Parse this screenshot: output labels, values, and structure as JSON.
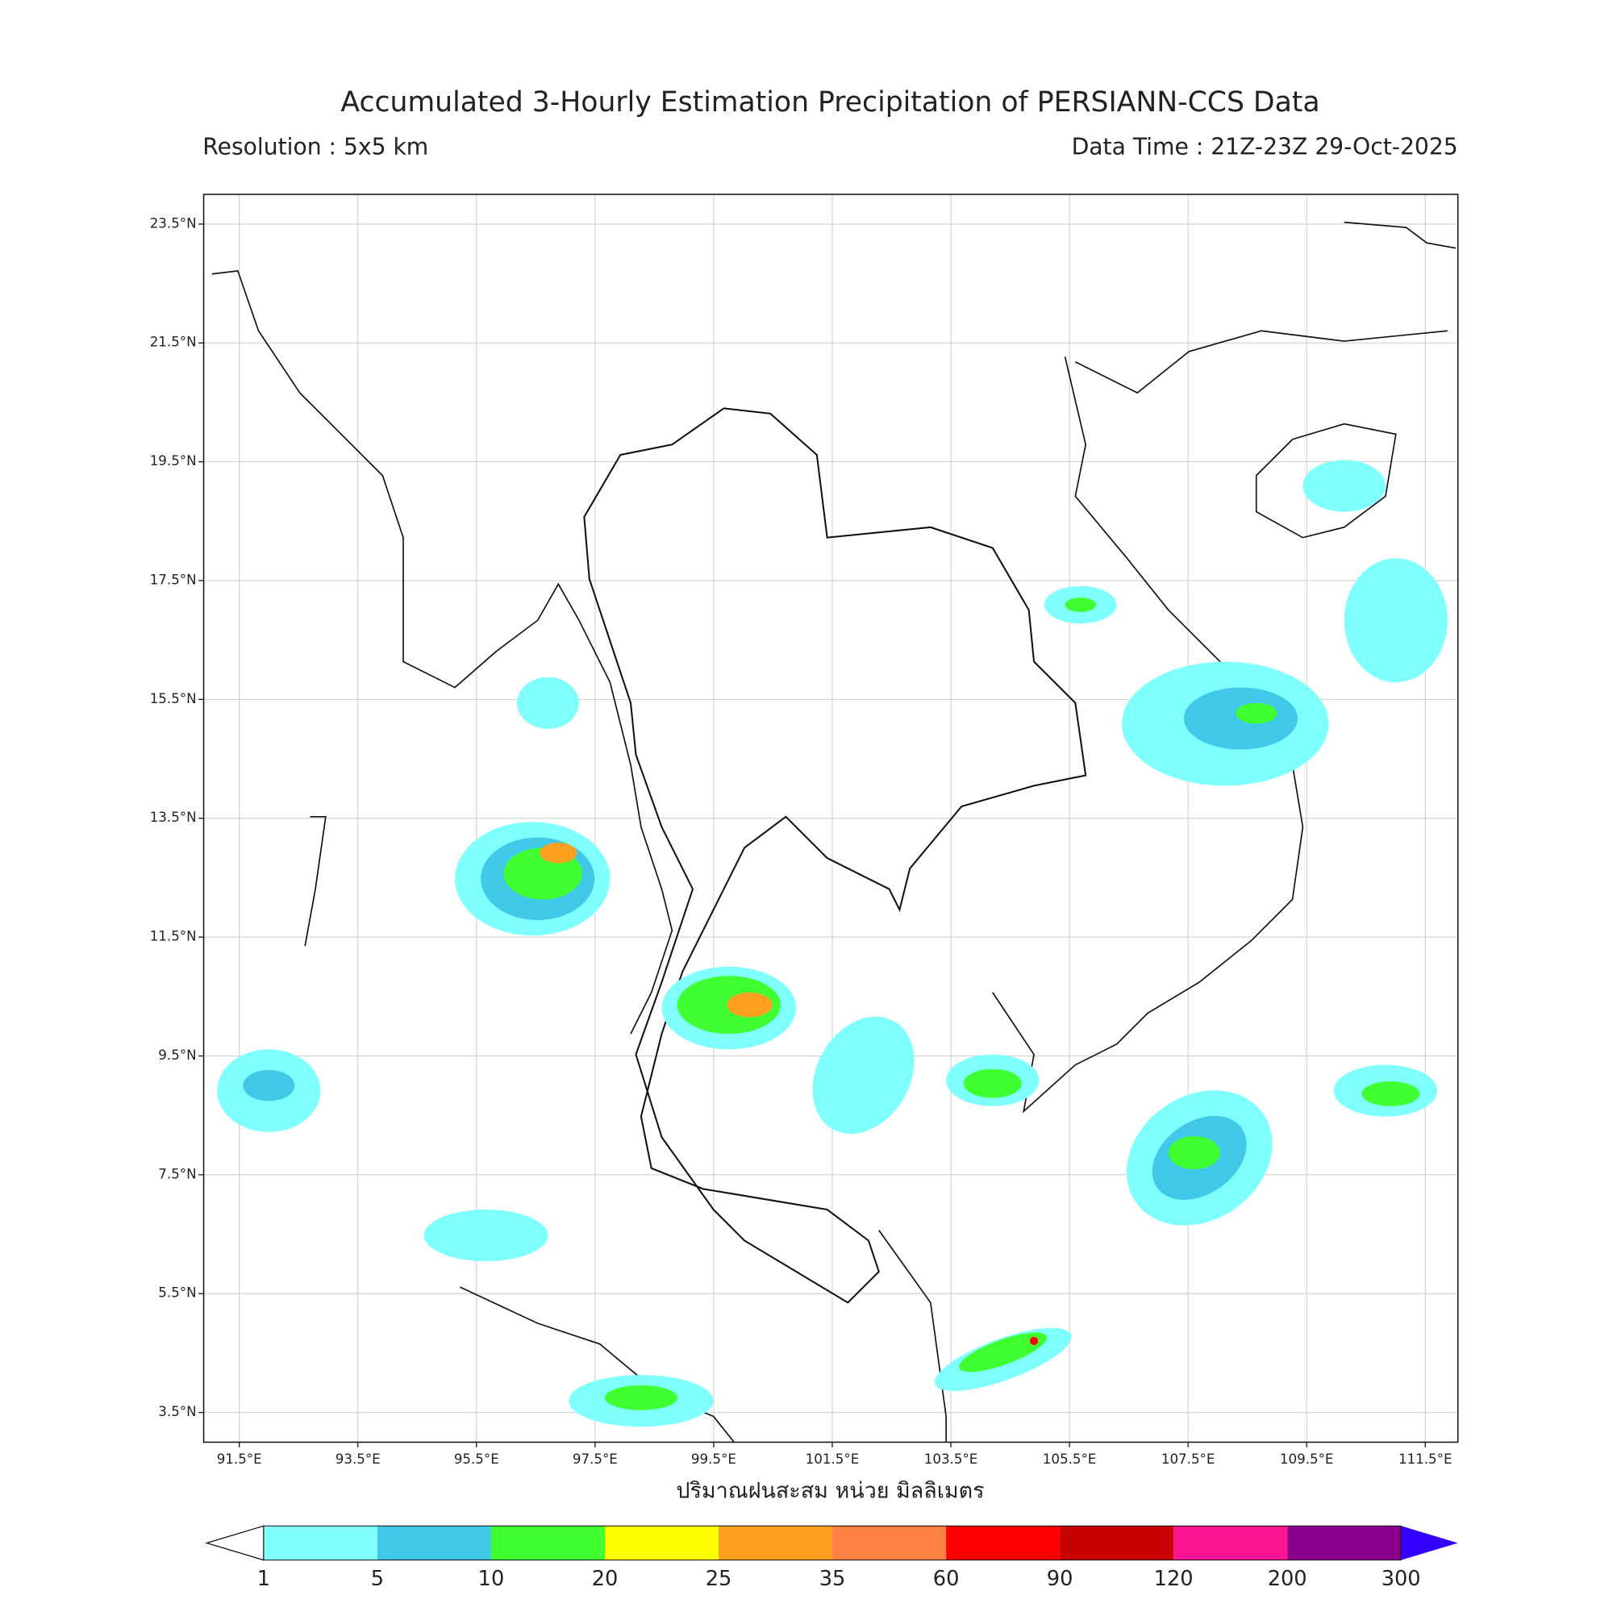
{
  "header": {
    "title": "Accumulated 3-Hourly Estimation Precipitation of PERSIANN-CCS Data",
    "resolution": "Resolution : 5x5 km",
    "data_time": "Data Time : 21Z-23Z 29-Oct-2025"
  },
  "map": {
    "lon_range": [
      90.9,
      112.05
    ],
    "lat_range": [
      3.0,
      24.0
    ],
    "grid": true,
    "lon_ticks": [
      {
        "value": 91.5,
        "label": "91.5°E"
      },
      {
        "value": 93.5,
        "label": "93.5°E"
      },
      {
        "value": 95.5,
        "label": "95.5°E"
      },
      {
        "value": 97.5,
        "label": "97.5°E"
      },
      {
        "value": 99.5,
        "label": "99.5°E"
      },
      {
        "value": 101.5,
        "label": "101.5°E"
      },
      {
        "value": 103.5,
        "label": "103.5°E"
      },
      {
        "value": 105.5,
        "label": "105.5°E"
      },
      {
        "value": 107.5,
        "label": "107.5°E"
      },
      {
        "value": 109.5,
        "label": "109.5°E"
      },
      {
        "value": 111.5,
        "label": "111.5°E"
      }
    ],
    "lat_ticks": [
      {
        "value": 23.5,
        "label": "23.5°N"
      },
      {
        "value": 21.5,
        "label": "21.5°N"
      },
      {
        "value": 19.5,
        "label": "19.5°N"
      },
      {
        "value": 17.5,
        "label": "17.5°N"
      },
      {
        "value": 15.5,
        "label": "15.5°N"
      },
      {
        "value": 13.5,
        "label": "13.5°N"
      },
      {
        "value": 11.5,
        "label": "11.5°N"
      },
      {
        "value": 9.5,
        "label": "9.5°N"
      },
      {
        "value": 7.5,
        "label": "7.5°N"
      },
      {
        "value": 5.5,
        "label": "5.5°N"
      },
      {
        "value": 3.5,
        "label": "3.5°N"
      }
    ],
    "xlabel": "ปริมาณฝนสะสม หน่วย มิลลิเมตร"
  },
  "colorbar": {
    "levels": [
      1,
      5,
      10,
      20,
      25,
      35,
      60,
      90,
      120,
      200,
      300
    ],
    "colors": [
      "#80ffff",
      "#40c8e8",
      "#40ff30",
      "#ffff00",
      "#ffa020",
      "#ff8040",
      "#ff0000",
      "#c80000",
      "#ff1493",
      "#8b008b"
    ],
    "under_color": "#ffffff",
    "over_color": "#3300ff"
  }
}
